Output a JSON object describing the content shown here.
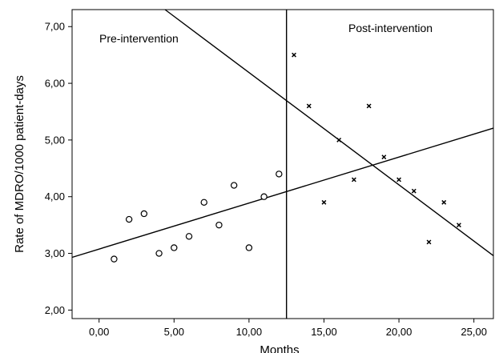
{
  "chart_data": {
    "type": "scatter",
    "xlabel": "Months",
    "ylabel": "Rate of MDRO/1000 patient-days",
    "xlim": [
      -1.8,
      26.3
    ],
    "ylim": [
      1.85,
      7.3
    ],
    "x_ticks": [
      {
        "value": 0,
        "label": "0,00"
      },
      {
        "value": 5,
        "label": "5,00"
      },
      {
        "value": 10,
        "label": "10,00"
      },
      {
        "value": 15,
        "label": "15,00"
      },
      {
        "value": 20,
        "label": "20,00"
      },
      {
        "value": 25,
        "label": "25,00"
      }
    ],
    "y_ticks": [
      {
        "value": 2,
        "label": "2,00"
      },
      {
        "value": 3,
        "label": "3,00"
      },
      {
        "value": 4,
        "label": "4,00"
      },
      {
        "value": 5,
        "label": "5,00"
      },
      {
        "value": 6,
        "label": "6,00"
      },
      {
        "value": 7,
        "label": "7,00"
      }
    ],
    "intervention_x": 12.5,
    "annotations": {
      "pre": "Pre-intervention",
      "post": "Post-intervention"
    },
    "series": [
      {
        "marker": "circle",
        "x": [
          1,
          2,
          3,
          4,
          5,
          6,
          7,
          8,
          9,
          10,
          11,
          12
        ],
        "y": [
          2.9,
          3.6,
          3.7,
          3.0,
          3.1,
          3.3,
          3.9,
          3.5,
          4.2,
          3.1,
          4.0,
          4.4
        ]
      },
      {
        "marker": "x",
        "x": [
          13,
          14,
          15,
          16,
          17,
          18,
          19,
          20,
          21,
          22,
          23,
          24
        ],
        "y": [
          6.5,
          5.6,
          3.9,
          5.0,
          4.3,
          5.6,
          4.7,
          4.3,
          4.1,
          3.2,
          3.9,
          3.5
        ]
      }
    ],
    "fit_lines": [
      {
        "x": [
          -1.8,
          26.3
        ],
        "y": [
          2.93,
          5.21
        ]
      },
      {
        "x": [
          4.4,
          26.3
        ],
        "y": [
          7.3,
          2.96
        ]
      }
    ],
    "grid": false
  }
}
